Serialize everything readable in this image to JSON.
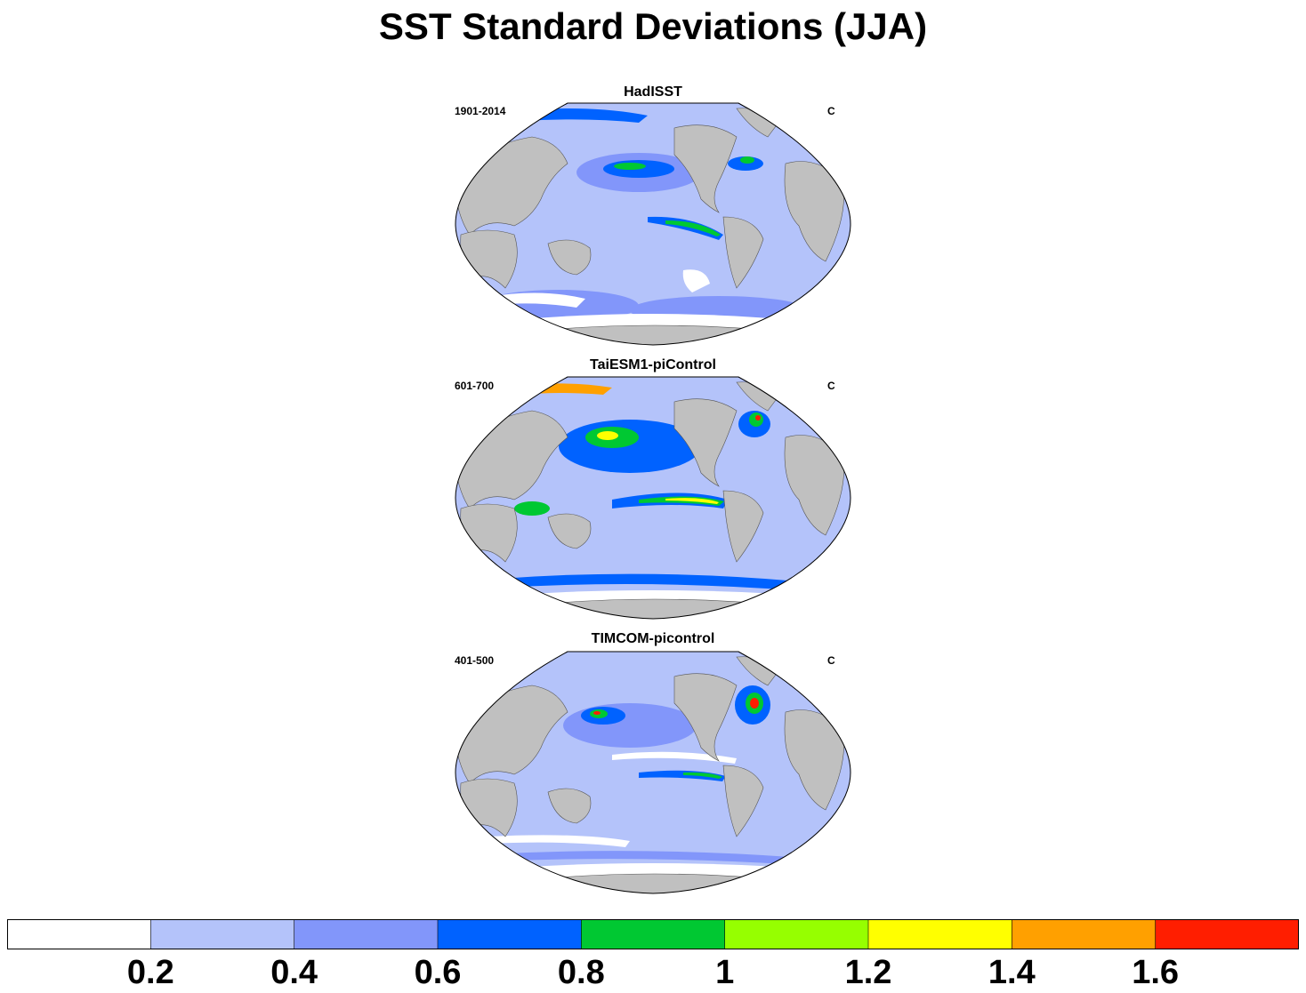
{
  "title": "SST Standard Deviations (JJA)",
  "panels": [
    {
      "title": "HadISST",
      "period": "1901-2014",
      "units": "C"
    },
    {
      "title": "TaiESM1-piControl",
      "period": "601-700",
      "units": "C"
    },
    {
      "title": "TIMCOM-picontrol",
      "period": "401-500",
      "units": "C"
    }
  ],
  "colorbar": {
    "colors": [
      "#ffffff",
      "#b4c3fa",
      "#8296fa",
      "#0062ff",
      "#00c832",
      "#96ff00",
      "#ffff00",
      "#ffa000",
      "#ff1e00"
    ],
    "labels": [
      "0.2",
      "0.4",
      "0.6",
      "0.8",
      "1",
      "1.2",
      "1.4",
      "1.6"
    ]
  },
  "colors": {
    "land": "#c0c0c0",
    "coast": "#555555"
  }
}
